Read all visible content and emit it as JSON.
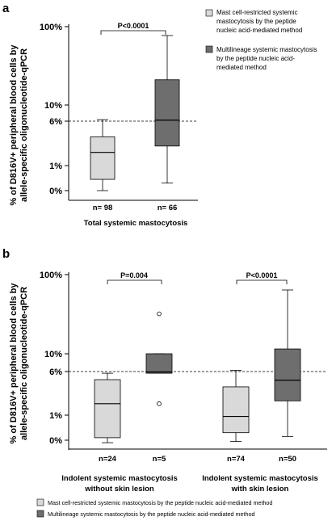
{
  "chart_data": [
    {
      "panel_label": "a",
      "type": "box",
      "ylabel_lines": [
        "% of D816V+ peripheral blood  cells by",
        "allele-specific oligonucleotide-qPCR"
      ],
      "ytick_labels": [
        "100%",
        "10%",
        "6%",
        "1%",
        "0%"
      ],
      "ytick_values": [
        100,
        10,
        6,
        1,
        0
      ],
      "y_scale": "log",
      "threshold_line": {
        "value": 6,
        "style": "dashed"
      },
      "group_label": "Total systemic mastocytosis",
      "significance": {
        "text": "P<0.0001"
      },
      "legend": {
        "placement": "top-right",
        "entries": [
          {
            "lines": [
              "Mast cell-restricted systemic",
              "mastocytosis by the peptide",
              "nucleic acid-mediated method"
            ],
            "color": "#d9d9d9"
          },
          {
            "lines": [
              "Multilineage systemic mastocytosis",
              "by the peptide nucleic acid-",
              "mediated method"
            ],
            "color": "#6e6e6e"
          }
        ]
      },
      "boxes": [
        {
          "n_label": "n= 98",
          "color": "#d9d9d9",
          "min": 0,
          "q1": 0.45,
          "median": 1.7,
          "q3": 3.2,
          "max": 6.3,
          "outliers": []
        },
        {
          "n_label": "n= 66",
          "color": "#6e6e6e",
          "min": 0.3,
          "q1": 2.2,
          "median": 6.2,
          "q3": 21,
          "max": 77,
          "outliers": []
        }
      ]
    },
    {
      "panel_label": "b",
      "type": "box",
      "ylabel_lines": [
        "% of D816V+ peripheral blood  cells by",
        "allele-specific oligonucleotide-qPCR"
      ],
      "ytick_labels": [
        "100%",
        "10%",
        "6%",
        "1%",
        "0%"
      ],
      "ytick_values": [
        100,
        10,
        6,
        1,
        0
      ],
      "y_scale": "log",
      "threshold_line": {
        "value": 6,
        "style": "dashed"
      },
      "groups": [
        {
          "label_lines": [
            "Indolent systemic mastocytosis",
            "without skin lesion"
          ],
          "significance": {
            "text": "P=0.004"
          },
          "boxes": [
            {
              "n_label": "n=24",
              "color": "#d9d9d9",
              "min": -0.1,
              "q1": 0.1,
              "median": 1.6,
              "q3": 4.3,
              "max": 5.6,
              "outliers": []
            },
            {
              "n_label": "n=5",
              "color": "#6e6e6e",
              "min": 5.6,
              "q1": 5.6,
              "median": 5.9,
              "q3": 10,
              "max": 10,
              "outliers": [
                32,
                1.6
              ]
            }
          ]
        },
        {
          "label_lines": [
            "Indolent systemic mastocytosis",
            "with skin lesion"
          ],
          "significance": {
            "text": "P<0.0001"
          },
          "boxes": [
            {
              "n_label": "n=74",
              "color": "#d9d9d9",
              "min": -0.05,
              "q1": 0.3,
              "median": 0.95,
              "q3": 3.2,
              "max": 6.2,
              "outliers": []
            },
            {
              "n_label": "n=50",
              "color": "#6e6e6e",
              "min": 0.15,
              "q1": 1.8,
              "median": 4.2,
              "q3": 11.5,
              "max": 64,
              "outliers": []
            }
          ]
        }
      ],
      "legend": {
        "placement": "bottom",
        "entries": [
          {
            "text": "Mast cell-restricted systemic mastocytosis by the peptide nucleic acid-mediated method",
            "color": "#d9d9d9"
          },
          {
            "text": "Multilineage systemic mastocytosis by the peptide nucleic acid-mediated method",
            "color": "#6e6e6e"
          }
        ]
      }
    }
  ]
}
